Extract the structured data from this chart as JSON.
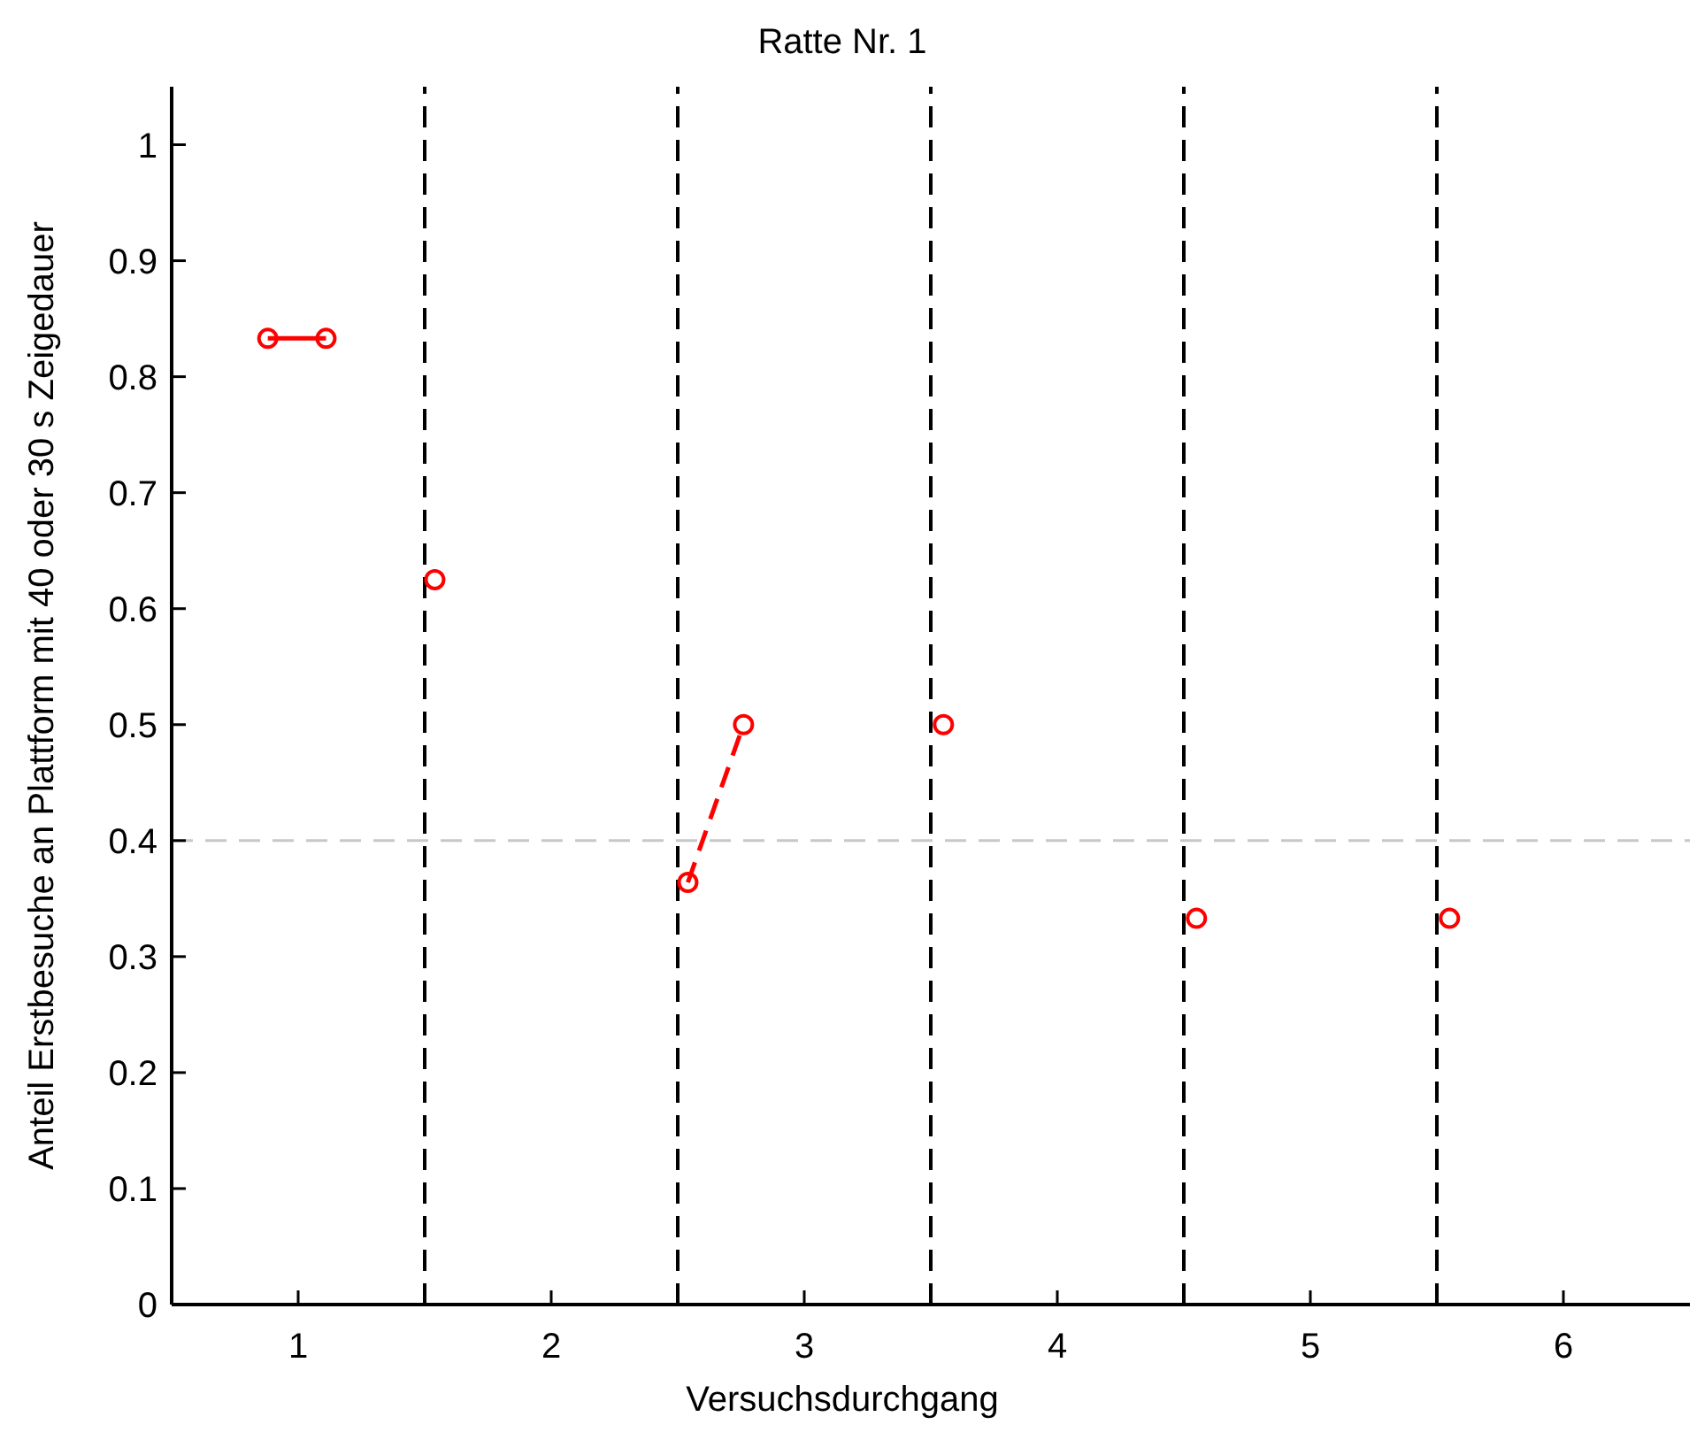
{
  "chart_data": {
    "type": "line",
    "title": "Ratte Nr. 1",
    "xlabel": "Versuchsdurchgang",
    "ylabel": "Anteil Erstbesuche an Plattform mit 40 oder 30 s Zeigedauer",
    "xlim": [
      0.5,
      6.5
    ],
    "xticks": [
      1,
      2,
      3,
      4,
      5,
      6
    ],
    "ylim": [
      0,
      1.05
    ],
    "yticks": [
      0,
      0.1,
      0.2,
      0.3,
      0.4,
      0.5,
      0.6,
      0.7,
      0.8,
      0.9,
      1
    ],
    "marker": "circle",
    "grid": false,
    "series": [
      {
        "color": "#ff0000",
        "x": [
          0.88,
          1.11
        ],
        "values": [
          0.833,
          0.833
        ],
        "line_style": "solid"
      },
      {
        "color": "#ff0000",
        "x": [
          1.54
        ],
        "values": [
          0.625
        ]
      },
      {
        "color": "#ff0000",
        "x": [
          2.54,
          2.76
        ],
        "values": [
          0.364,
          0.5
        ],
        "line_style": "dashed"
      },
      {
        "color": "#ff0000",
        "x": [
          3.55
        ],
        "values": [
          0.5
        ]
      },
      {
        "color": "#ff0000",
        "x": [
          4.55
        ],
        "values": [
          0.333
        ]
      },
      {
        "color": "#ff0000",
        "x": [
          5.55
        ],
        "values": [
          0.333
        ]
      }
    ],
    "ref_lines": [
      {
        "axis": "x",
        "value": 1.5,
        "color": "#000000",
        "line_style": "dashed"
      },
      {
        "axis": "x",
        "value": 2.5,
        "color": "#000000",
        "line_style": "dashed"
      },
      {
        "axis": "x",
        "value": 3.5,
        "color": "#000000",
        "line_style": "dashed"
      },
      {
        "axis": "x",
        "value": 4.5,
        "color": "#000000",
        "line_style": "dashed"
      },
      {
        "axis": "x",
        "value": 5.5,
        "color": "#000000",
        "line_style": "dashed"
      },
      {
        "axis": "y",
        "value": 0.4,
        "color": "#c8c8c8",
        "line_style": "dashed"
      }
    ]
  }
}
